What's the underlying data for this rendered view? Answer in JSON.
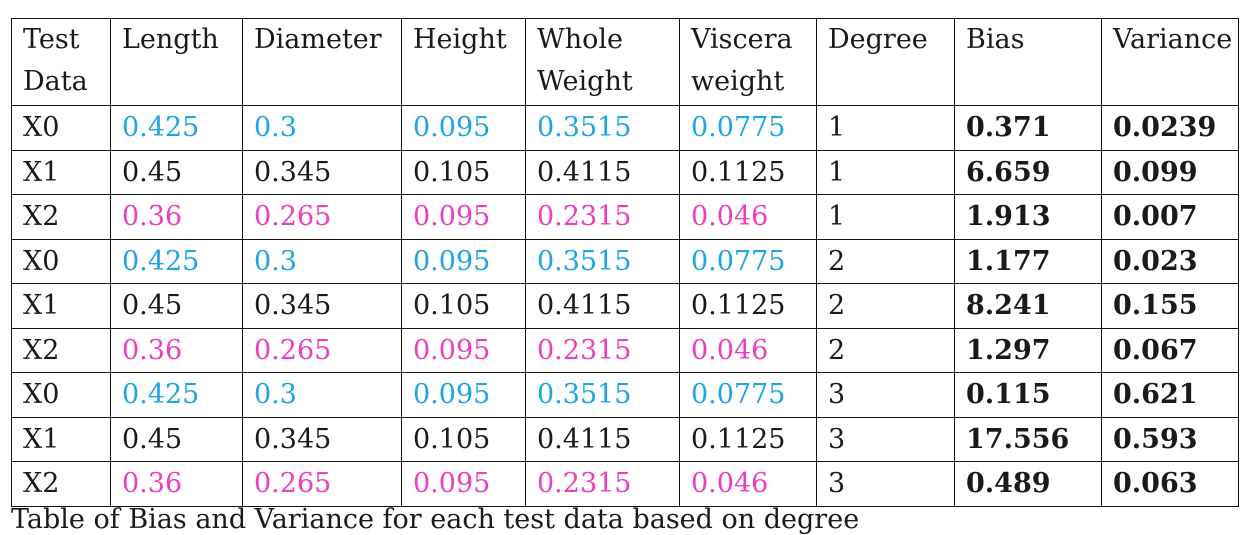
{
  "table": {
    "headers": [
      "Test Data",
      "Length",
      "Diameter",
      "Height",
      "Whole Weight",
      "Viscera weight",
      "Degree",
      "Bias",
      "Variance"
    ],
    "colors": {
      "blue": "#1ea6e2",
      "pink": "#ec3fbf",
      "black": "#1a1a1a"
    },
    "rows": [
      {
        "color": "blue",
        "cells": [
          "X0",
          "0.425",
          "0.3",
          "0.095",
          "0.3515",
          "0.0775",
          "1",
          "0.371",
          "0.0239"
        ]
      },
      {
        "color": "black",
        "cells": [
          "X1",
          "0.45",
          "0.345",
          "0.105",
          "0.4115",
          "0.1125",
          "1",
          "6.659",
          "0.099"
        ]
      },
      {
        "color": "pink",
        "cells": [
          "X2",
          "0.36",
          "0.265",
          "0.095",
          "0.2315",
          "0.046",
          "1",
          "1.913",
          "0.007"
        ]
      },
      {
        "color": "blue",
        "cells": [
          "X0",
          "0.425",
          "0.3",
          "0.095",
          "0.3515",
          "0.0775",
          "2",
          "1.177",
          "0.023"
        ]
      },
      {
        "color": "black",
        "cells": [
          "X1",
          "0.45",
          "0.345",
          "0.105",
          "0.4115",
          "0.1125",
          "2",
          "8.241",
          "0.155"
        ]
      },
      {
        "color": "pink",
        "cells": [
          "X2",
          "0.36",
          "0.265",
          "0.095",
          "0.2315",
          "0.046",
          "2",
          "1.297",
          "0.067"
        ]
      },
      {
        "color": "blue",
        "cells": [
          "X0",
          "0.425",
          "0.3",
          "0.095",
          "0.3515",
          "0.0775",
          "3",
          "0.115",
          "0.621"
        ]
      },
      {
        "color": "black",
        "cells": [
          "X1",
          "0.45",
          "0.345",
          "0.105",
          "0.4115",
          "0.1125",
          "3",
          "17.556",
          "0.593"
        ]
      },
      {
        "color": "pink",
        "cells": [
          "X2",
          "0.36",
          "0.265",
          "0.095",
          "0.2315",
          "0.046",
          "3",
          "0.489",
          "0.063"
        ]
      }
    ]
  },
  "caption": "Table of Bias and Variance for each test data based on degree"
}
